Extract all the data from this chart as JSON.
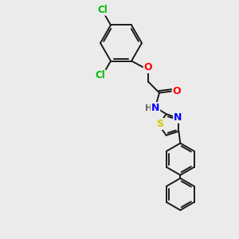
{
  "background_color": "#ebebeb",
  "bond_color": "#1a1a1a",
  "atom_colors": {
    "Cl": "#00bb00",
    "O": "#ff0000",
    "N": "#0000ff",
    "S": "#cccc00",
    "H": "#666666",
    "C": "#1a1a1a"
  },
  "figsize": [
    3.0,
    3.0
  ],
  "dpi": 100
}
